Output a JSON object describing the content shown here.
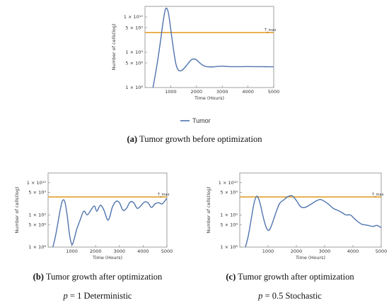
{
  "legend": {
    "label": "Tumor",
    "color": "#4F74AE"
  },
  "colors": {
    "tumor": "#4F74AE",
    "threshold": "#E3A02B"
  },
  "captions": [
    {
      "tag": "(a)",
      "text": "Tumor growth before optimization"
    },
    {
      "tag": "(b)",
      "text": "Tumor growth after optimization"
    },
    {
      "tag": "(c)",
      "text": "Tumor growth after optimization"
    }
  ],
  "params": [
    {
      "var": "p",
      "rest": "= 1 Deterministic"
    },
    {
      "var": "p",
      "rest": "= 0.5 Stochastic"
    }
  ],
  "chart_data": [
    {
      "type": "line",
      "title": "",
      "xlabel": "Time (Hours)",
      "ylabel": "Number of cells(log)",
      "xlim": [
        0,
        5000
      ],
      "ylim": [
        100000000,
        20000000000
      ],
      "y_scale": "log",
      "grid": false,
      "legend_position": "bottom",
      "x_ticks": [
        1000,
        2000,
        3000,
        4000,
        5000
      ],
      "y_ticks": [
        {
          "v": 100000000,
          "label": "1 × 10⁸"
        },
        {
          "v": 500000000,
          "label": "5 × 10⁸"
        },
        {
          "v": 1000000000,
          "label": "1 × 10⁹"
        },
        {
          "v": 5000000000,
          "label": "5 × 10⁹"
        },
        {
          "v": 10000000000,
          "label": "1 × 10¹⁰"
        }
      ],
      "threshold": {
        "label": "T_max",
        "value": 3600000000
      },
      "series": [
        {
          "name": "Tumor",
          "x": [
            310,
            400,
            500,
            600,
            700,
            800,
            900,
            1000,
            1100,
            1200,
            1300,
            1400,
            1500,
            1600,
            1700,
            1800,
            1900,
            2000,
            2100,
            2200,
            2300,
            2400,
            2600,
            2800,
            3000,
            3200,
            3500,
            4000,
            4500,
            5000
          ],
          "y": [
            100000000,
            230000000,
            630000000,
            2000000000,
            7000000000,
            17000000000,
            14000000000,
            4500000000,
            1300000000,
            470000000,
            310000000,
            300000000,
            340000000,
            410000000,
            510000000,
            610000000,
            650000000,
            610000000,
            520000000,
            450000000,
            410000000,
            390000000,
            385000000,
            395000000,
            405000000,
            395000000,
            390000000,
            392000000,
            390000000,
            388000000
          ]
        }
      ]
    },
    {
      "type": "line",
      "title": "",
      "xlabel": "Time (Hours)",
      "ylabel": "Number of cells(log)",
      "xlim": [
        0,
        5000
      ],
      "ylim": [
        100000000,
        20000000000
      ],
      "y_scale": "log",
      "grid": false,
      "x_ticks": [
        1000,
        2000,
        3000,
        4000,
        5000
      ],
      "y_ticks": [
        {
          "v": 100000000,
          "label": "1 × 10⁸"
        },
        {
          "v": 500000000,
          "label": "5 × 10⁸"
        },
        {
          "v": 1000000000,
          "label": "1 × 10⁹"
        },
        {
          "v": 5000000000,
          "label": "5 × 10⁹"
        },
        {
          "v": 10000000000,
          "label": "1 × 10¹⁰"
        }
      ],
      "threshold": {
        "label": "T_max",
        "value": 3600000000
      },
      "series": [
        {
          "name": "Tumor",
          "x": [
            200,
            300,
            400,
            500,
            600,
            700,
            800,
            900,
            1000,
            1100,
            1200,
            1350,
            1500,
            1650,
            1800,
            1950,
            2050,
            2200,
            2350,
            2500,
            2600,
            2700,
            2850,
            3000,
            3150,
            3300,
            3450,
            3600,
            3750,
            3900,
            4050,
            4200,
            4350,
            4500,
            4650,
            4800,
            5000
          ],
          "y": [
            100000000,
            200000000,
            500000000,
            1300000000,
            2700000000,
            2600000000,
            1000000000,
            250000000,
            120000000,
            180000000,
            350000000,
            700000000,
            1300000000,
            1000000000,
            1400000000,
            1900000000,
            1300000000,
            2000000000,
            1400000000,
            700000000,
            900000000,
            1700000000,
            2600000000,
            2400000000,
            1400000000,
            1600000000,
            2500000000,
            2400000000,
            1600000000,
            1900000000,
            2500000000,
            2400000000,
            1700000000,
            2200000000,
            2400000000,
            2200000000,
            3300000000
          ]
        }
      ]
    },
    {
      "type": "line",
      "title": "",
      "xlabel": "Time (Hours)",
      "ylabel": "Number of cells(log)",
      "xlim": [
        0,
        5000
      ],
      "ylim": [
        100000000,
        20000000000
      ],
      "y_scale": "log",
      "grid": false,
      "x_ticks": [
        1000,
        2000,
        3000,
        4000,
        5000
      ],
      "y_ticks": [
        {
          "v": 100000000,
          "label": "1 × 10⁸"
        },
        {
          "v": 500000000,
          "label": "5 × 10⁸"
        },
        {
          "v": 1000000000,
          "label": "1 × 10⁹"
        },
        {
          "v": 5000000000,
          "label": "5 × 10⁹"
        },
        {
          "v": 10000000000,
          "label": "1 × 10¹⁰"
        }
      ],
      "threshold": {
        "label": "T_max",
        "value": 3600000000
      },
      "series": [
        {
          "name": "Tumor",
          "x": [
            200,
            300,
            400,
            500,
            600,
            700,
            800,
            900,
            1000,
            1100,
            1250,
            1400,
            1550,
            1700,
            1850,
            2000,
            2150,
            2300,
            2500,
            2700,
            2850,
            3000,
            3150,
            3300,
            3450,
            3600,
            3750,
            3900,
            4000,
            4100,
            4300,
            4500,
            4700,
            4850,
            5000
          ],
          "y": [
            100000000,
            220000000,
            700000000,
            2200000000,
            3800000000,
            2600000000,
            1100000000,
            500000000,
            330000000,
            420000000,
            1000000000,
            2200000000,
            2900000000,
            3700000000,
            3900000000,
            2800000000,
            1800000000,
            1700000000,
            2100000000,
            2700000000,
            3000000000,
            2600000000,
            2100000000,
            1600000000,
            1400000000,
            1200000000,
            1000000000,
            1000000000,
            850000000,
            700000000,
            520000000,
            480000000,
            440000000,
            470000000,
            400000000
          ]
        }
      ]
    }
  ]
}
